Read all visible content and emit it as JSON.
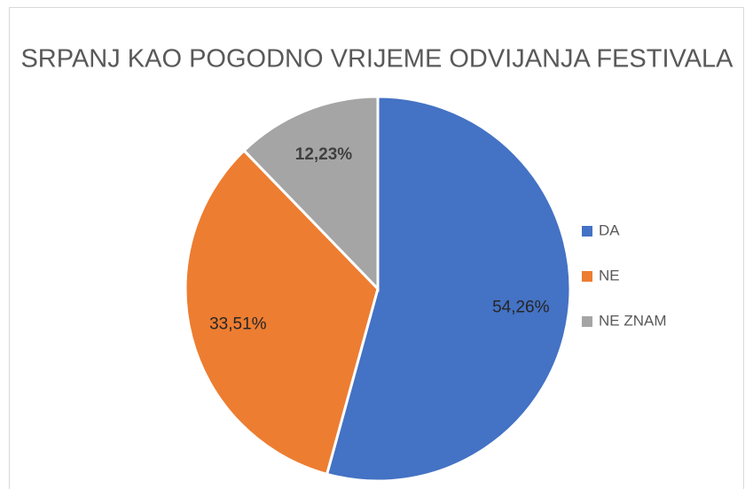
{
  "chart_data": {
    "type": "pie",
    "title": "SRPANJ KAO POGODNO VRIJEME ODVIJANJA FESTIVALA",
    "categories": [
      "DA",
      "NE",
      "NE ZNAM"
    ],
    "values": [
      54.26,
      33.51,
      12.23
    ],
    "value_labels": [
      "54,26%",
      "33,51%",
      "12,23%"
    ],
    "colors": [
      "#4472c4",
      "#ed7d31",
      "#a5a5a5"
    ],
    "legend": "right"
  }
}
